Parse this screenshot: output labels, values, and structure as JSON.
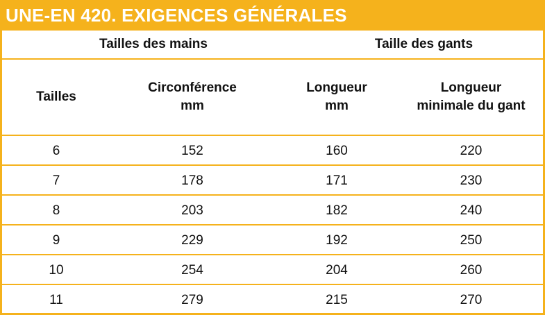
{
  "title": "UNE-EN 420. EXIGENCES GÉNÉRALES",
  "groups": {
    "hand_sizes": "Tailles des mains",
    "glove_size": "Taille des gants"
  },
  "columns": {
    "size": "Tailles",
    "circumference_line1": "Circonférence",
    "circumference_line2": "mm",
    "length_line1": "Longueur",
    "length_line2": "mm",
    "min_length_line1": "Longueur",
    "min_length_line2": "minimale du gant"
  },
  "rows": [
    {
      "size": "6",
      "circumference": "152",
      "length": "160",
      "min_length": "220"
    },
    {
      "size": "7",
      "circumference": "178",
      "length": "171",
      "min_length": "230"
    },
    {
      "size": "8",
      "circumference": "203",
      "length": "182",
      "min_length": "240"
    },
    {
      "size": "9",
      "circumference": "229",
      "length": "192",
      "min_length": "250"
    },
    {
      "size": "10",
      "circumference": "254",
      "length": "204",
      "min_length": "260"
    },
    {
      "size": "11",
      "circumference": "279",
      "length": "215",
      "min_length": "270"
    }
  ],
  "colors": {
    "accent": "#f5b21c",
    "text": "#111111",
    "title_text": "#ffffff"
  }
}
